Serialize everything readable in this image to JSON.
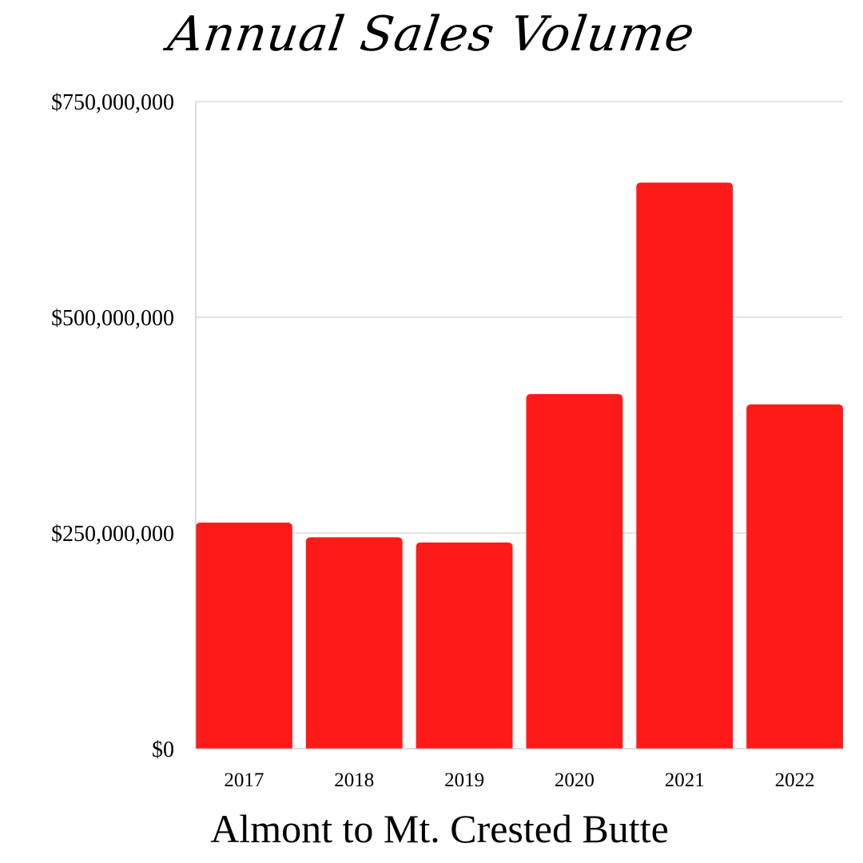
{
  "chart_data": {
    "type": "bar",
    "title": "Annual Sales Volume",
    "subtitle": "Almont to Mt. Crested Butte",
    "xlabel": "",
    "ylabel": "",
    "categories": [
      "2017",
      "2018",
      "2019",
      "2020",
      "2021",
      "2022"
    ],
    "values": [
      262000000,
      245000000,
      239000000,
      411000000,
      656000000,
      399000000
    ],
    "ylim": [
      0,
      750000000
    ],
    "yticks": [
      0,
      250000000,
      500000000,
      750000000
    ],
    "ytick_labels": [
      "$0",
      "$250,000,000",
      "$500,000,000",
      "$750,000,000"
    ],
    "grid": true,
    "legend": "none",
    "bar_color": "#ff1a1a"
  }
}
